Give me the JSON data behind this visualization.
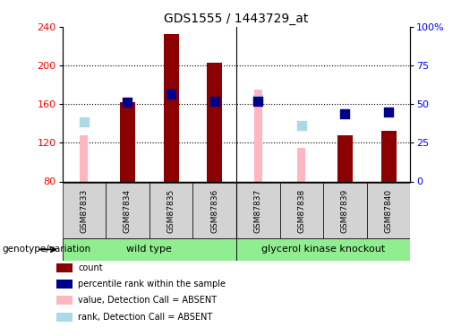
{
  "title": "GDS1555 / 1443729_at",
  "samples": [
    "GSM87833",
    "GSM87834",
    "GSM87835",
    "GSM87836",
    "GSM87837",
    "GSM87838",
    "GSM87839",
    "GSM87840"
  ],
  "ylim_left": [
    80,
    240
  ],
  "ylim_right": [
    0,
    100
  ],
  "yticks_left": [
    80,
    120,
    160,
    200,
    240
  ],
  "yticks_right": [
    0,
    25,
    50,
    75,
    100
  ],
  "ytick_labels_right": [
    "0",
    "25",
    "50",
    "75",
    "100%"
  ],
  "red_bars": [
    80,
    162,
    233,
    203,
    80,
    80,
    128,
    132
  ],
  "pink_bars": [
    128,
    80,
    80,
    203,
    175,
    115,
    80,
    80
  ],
  "blue_squares": [
    null,
    162,
    170,
    163,
    163,
    null,
    150,
    152
  ],
  "light_blue_squares": [
    142,
    null,
    null,
    null,
    165,
    138,
    null,
    null
  ],
  "red_bar_color": "#8B0000",
  "pink_bar_color": "#FFB6C1",
  "blue_sq_color": "#00008B",
  "light_blue_sq_color": "#ADD8E6",
  "group_divider": 4,
  "wt_label": "wild type",
  "ko_label": "glycerol kinase knockout",
  "group_color": "#90EE90",
  "genotype_label": "genotype/variation",
  "legend_labels": [
    "count",
    "percentile rank within the sample",
    "value, Detection Call = ABSENT",
    "rank, Detection Call = ABSENT"
  ],
  "legend_colors": [
    "#8B0000",
    "#00008B",
    "#FFB6C1",
    "#ADD8E6"
  ],
  "bar_width": 0.35,
  "pink_bar_width": 0.18,
  "sq_size": 55,
  "background_color": "#ffffff"
}
